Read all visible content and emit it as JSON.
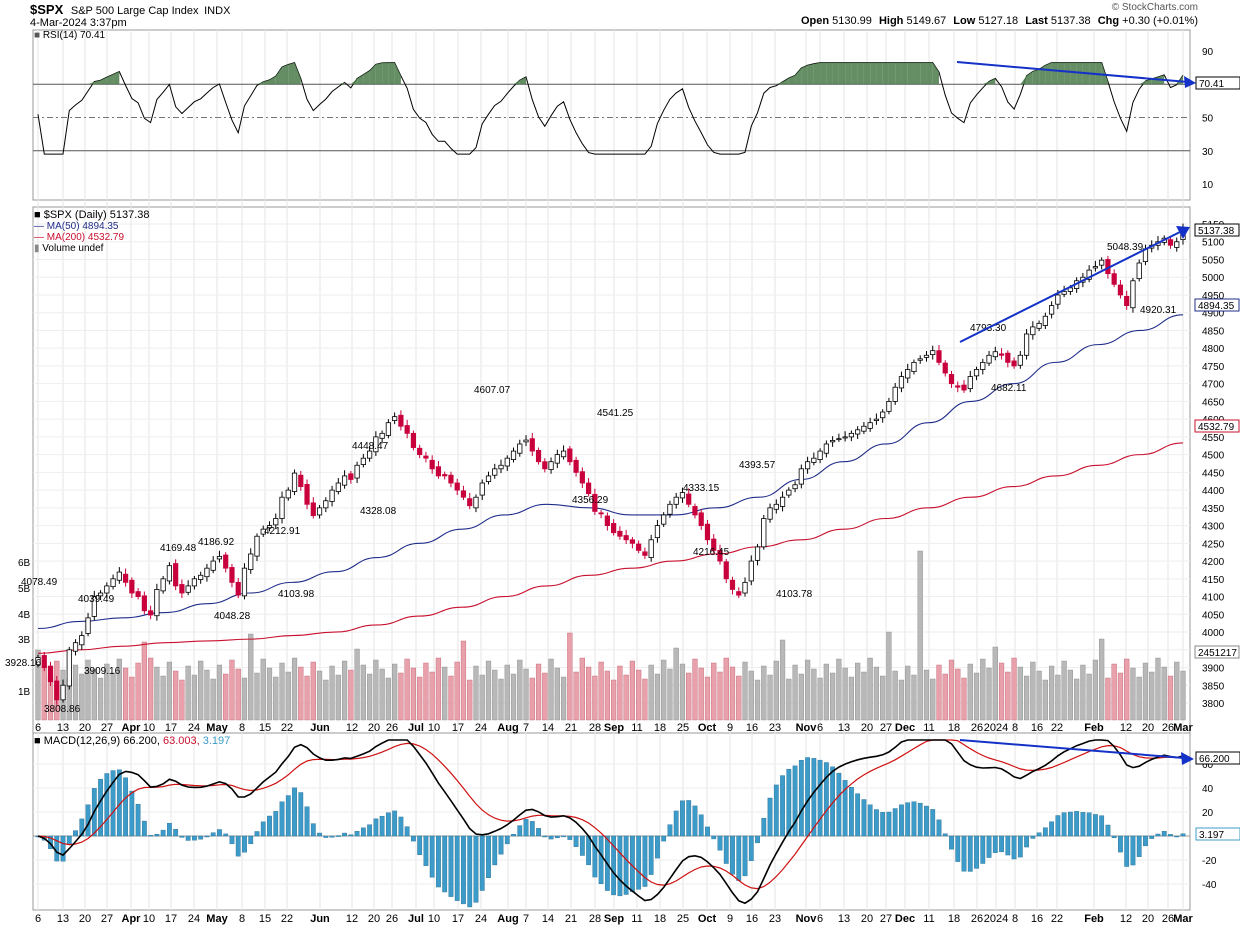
{
  "header": {
    "symbol": "$SPX",
    "name": "S&P 500 Large Cap Index",
    "exchange": "INDX",
    "timestamp": "4-Mar-2024 3:37pm",
    "brand": "© StockCharts.com",
    "open_label": "Open",
    "open": "5130.99",
    "high_label": "High",
    "high": "5149.67",
    "low_label": "Low",
    "low": "5127.18",
    "last_label": "Last",
    "last": "5137.38",
    "chg_label": "Chg",
    "chg": "+0.30 (+0.01%)"
  },
  "colors": {
    "up": "#000000",
    "down": "#c8003c",
    "ma50": "#1f2d8a",
    "ma200": "#c8102e",
    "vol_up": "#b8b8b8",
    "vol_down": "#e8a0aa",
    "arrow": "#1432c8",
    "rsi_fill": "#4a7a4a",
    "hist": "#3c9bc8"
  },
  "x_axis_labels": [
    "6",
    "13",
    "20",
    "27",
    "Apr",
    "10",
    "17",
    "24",
    "May",
    "8",
    "15",
    "22",
    "Jun",
    "12",
    "20",
    "26",
    "Jul",
    "10",
    "17",
    "24",
    "Aug",
    "7",
    "14",
    "21",
    "28",
    "Sep",
    "11",
    "18",
    "25",
    "Oct",
    "9",
    "16",
    "23",
    "Nov",
    "6",
    "13",
    "20",
    "27",
    "Dec",
    "11",
    "18",
    "26",
    "2024",
    "8",
    "16",
    "22",
    "Feb",
    "12",
    "20",
    "26",
    "Mar"
  ],
  "rsi": {
    "legend": "RSI(14) 70.41",
    "current_label": "70.41",
    "ticks": [
      "90",
      "70",
      "50",
      "30",
      "10"
    ]
  },
  "price": {
    "legend_main": "$SPX (Daily) 5137.38",
    "legend_ma50": "MA(50) 4894.35",
    "legend_ma200": "MA(200) 4532.79",
    "legend_vol": "Volume undef",
    "last_box": "5137.38",
    "ma50_box": "4894.35",
    "ma200_box": "4532.79",
    "vol_box": "2451217",
    "ticks": [
      "5150",
      "5100",
      "5050",
      "5000",
      "4950",
      "4900",
      "4850",
      "4800",
      "4750",
      "4700",
      "4650",
      "4600",
      "4550",
      "4500",
      "4450",
      "4400",
      "4350",
      "4300",
      "4250",
      "4200",
      "4150",
      "4100",
      "4050",
      "4000",
      "3950",
      "3900",
      "3850",
      "3800"
    ],
    "vol_ticks": [
      "6B",
      "5B",
      "4B",
      "3B",
      "1B"
    ],
    "annotations": [
      "4078.49",
      "3928.16",
      "3808.86",
      "4039.49",
      "3909.16",
      "4169.48",
      "4186.92",
      "4048.28",
      "4212.91",
      "4103.98",
      "4448.47",
      "4328.08",
      "4607.07",
      "4541.25",
      "4356.29",
      "4333.15",
      "4216.45",
      "4393.57",
      "4103.78",
      "4793.30",
      "4682.11",
      "5048.39",
      "4920.31"
    ]
  },
  "macd": {
    "legend_name": "MACD(12,26,9)",
    "legend_macd": "66.200,",
    "legend_signal": "63.003,",
    "legend_hist": "3.197",
    "macd_box": "66.200",
    "hist_box": "3.197",
    "ticks": [
      "60",
      "40",
      "20",
      "-20",
      "-40"
    ]
  },
  "chart_data": {
    "type": "line",
    "title": "$SPX S&P 500 Large Cap Index",
    "series": [
      {
        "name": "$SPX (Daily)",
        "values": [
          3928,
          3900,
          3860,
          3809,
          3850,
          3950,
          3970,
          3990,
          4040,
          4100,
          4110,
          4130,
          4150,
          4169,
          4140,
          4110,
          4100,
          4060,
          4048,
          4120,
          4150,
          4187,
          4130,
          4110,
          4130,
          4150,
          4160,
          4180,
          4200,
          4213,
          4180,
          4140,
          4104,
          4180,
          4220,
          4270,
          4290,
          4300,
          4320,
          4380,
          4400,
          4448,
          4410,
          4360,
          4328,
          4350,
          4370,
          4400,
          4420,
          4440,
          4430,
          4470,
          4490,
          4510,
          4550,
          4560,
          4590,
          4607,
          4580,
          4560,
          4520,
          4500,
          4490,
          4460,
          4440,
          4440,
          4420,
          4400,
          4380,
          4356,
          4380,
          4420,
          4440,
          4460,
          4470,
          4490,
          4510,
          4530,
          4541,
          4510,
          4480,
          4460,
          4480,
          4500,
          4510,
          4480,
          4450,
          4420,
          4390,
          4340,
          4333,
          4300,
          4280,
          4270,
          4260,
          4250,
          4230,
          4216,
          4260,
          4300,
          4330,
          4360,
          4380,
          4393,
          4360,
          4330,
          4300,
          4260,
          4230,
          4200,
          4150,
          4120,
          4104,
          4140,
          4200,
          4240,
          4320,
          4350,
          4360,
          4380,
          4400,
          4415,
          4460,
          4480,
          4490,
          4510,
          4530,
          4540,
          4545,
          4550,
          4560,
          4570,
          4580,
          4590,
          4600,
          4620,
          4650,
          4690,
          4720,
          4740,
          4760,
          4770,
          4780,
          4793,
          4760,
          4730,
          4700,
          4690,
          4682,
          4720,
          4740,
          4760,
          4780,
          4790,
          4780,
          4760,
          4750,
          4780,
          4840,
          4860,
          4870,
          4890,
          4920,
          4950,
          4960,
          4970,
          4990,
          5000,
          5020,
          5030,
          5048,
          5010,
          4980,
          4950,
          4920,
          4990,
          5040,
          5080,
          5090,
          5100,
          5110,
          5090,
          5100,
          5137
        ]
      },
      {
        "name": "MA(50)",
        "values": [
          4010,
          4030,
          4040,
          4055,
          4080,
          4110,
          4140,
          4170,
          4210,
          4250,
          4290,
          4330,
          4360,
          4350,
          4330,
          4330,
          4350,
          4380,
          4430,
          4480,
          4530,
          4590,
          4650,
          4700,
          4760,
          4810,
          4850,
          4894
        ]
      },
      {
        "name": "MA(200)",
        "values": [
          3940,
          3950,
          3960,
          3970,
          3975,
          3980,
          3990,
          4000,
          4020,
          4045,
          4070,
          4100,
          4130,
          4160,
          4180,
          4200,
          4220,
          4240,
          4260,
          4290,
          4320,
          4350,
          4380,
          4410,
          4440,
          4470,
          4500,
          4533
        ]
      }
    ],
    "ylim": [
      3780,
      5160
    ],
    "legend": "top-left",
    "grid": true
  }
}
